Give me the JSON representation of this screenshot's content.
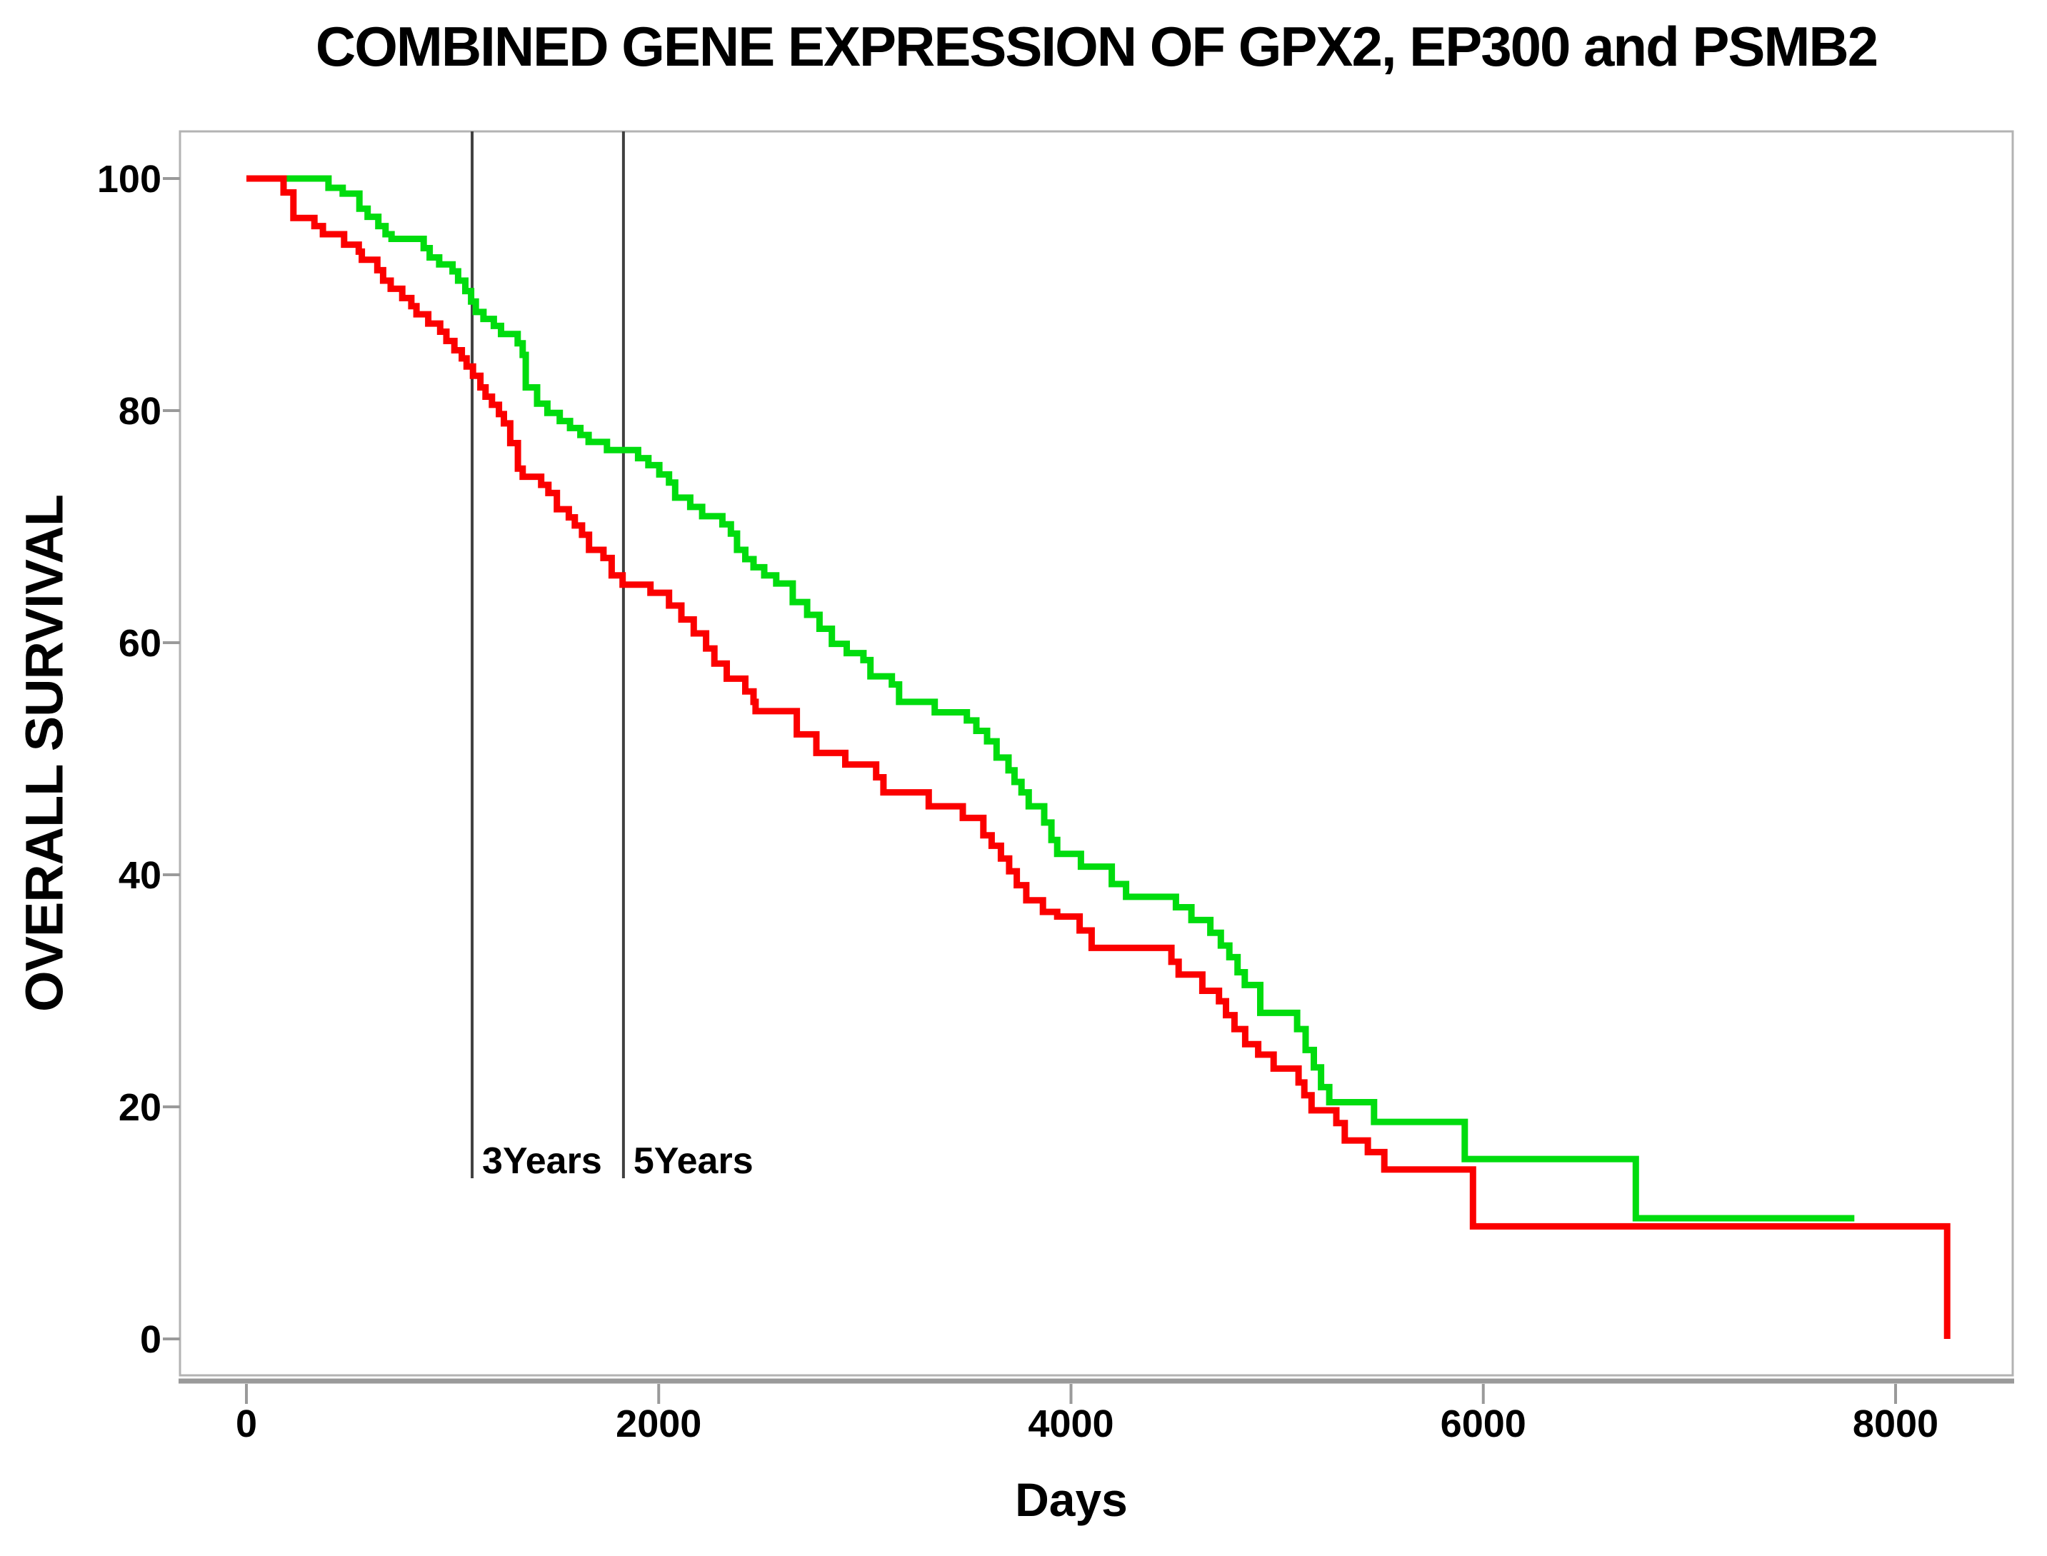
{
  "figure": {
    "background_color": "#ffffff",
    "text_color": "#000000",
    "border_color": "#b3b3b3",
    "axis_color": "#9a9a9a",
    "annotation_line_color": "#404040"
  },
  "chart_data": {
    "type": "line",
    "subtype": "kaplan-meier-step-survival",
    "title": "COMBINED GENE EXPRESSION OF GPX2, EP300 and PSMB2",
    "xlabel": "Days",
    "ylabel": "OVERALL SURVIVAL",
    "xlim": [
      0,
      8000
    ],
    "ylim": [
      0,
      100
    ],
    "x_ticks": [
      "0",
      "2000",
      "4000",
      "6000",
      "8000"
    ],
    "y_ticks": [
      "0",
      "20",
      "40",
      "60",
      "80",
      "100"
    ],
    "x_tick_values": [
      0,
      2000,
      4000,
      6000,
      8000
    ],
    "y_tick_values": [
      0,
      20,
      40,
      60,
      80,
      100
    ],
    "grid": false,
    "legend_position": "none",
    "annotations": [
      {
        "label": "3Years",
        "day": 1095
      },
      {
        "label": "5Years",
        "day": 1829
      }
    ],
    "series": [
      {
        "name": "green-curve",
        "color": "#00DC0E",
        "points": [
          [
            0,
            100
          ],
          [
            398,
            99.2
          ],
          [
            467,
            98.7
          ],
          [
            548,
            97.4
          ],
          [
            588,
            96.7
          ],
          [
            640,
            95.9
          ],
          [
            675,
            95.2
          ],
          [
            704,
            94.8
          ],
          [
            860,
            94.0
          ],
          [
            889,
            93.2
          ],
          [
            935,
            92.6
          ],
          [
            1000,
            92.0
          ],
          [
            1027,
            91.2
          ],
          [
            1062,
            90.3
          ],
          [
            1090,
            89.4
          ],
          [
            1113,
            88.5
          ],
          [
            1150,
            87.9
          ],
          [
            1200,
            87.3
          ],
          [
            1235,
            86.6
          ],
          [
            1316,
            85.8
          ],
          [
            1340,
            84.8
          ],
          [
            1355,
            82.0
          ],
          [
            1410,
            80.6
          ],
          [
            1460,
            79.8
          ],
          [
            1520,
            79.1
          ],
          [
            1570,
            78.5
          ],
          [
            1620,
            77.9
          ],
          [
            1660,
            77.3
          ],
          [
            1749,
            76.6
          ],
          [
            1900,
            75.9
          ],
          [
            1950,
            75.3
          ],
          [
            2003,
            74.5
          ],
          [
            2050,
            73.8
          ],
          [
            2080,
            72.5
          ],
          [
            2153,
            71.7
          ],
          [
            2211,
            70.9
          ],
          [
            2309,
            70.2
          ],
          [
            2350,
            69.4
          ],
          [
            2380,
            68.0
          ],
          [
            2420,
            67.2
          ],
          [
            2460,
            66.5
          ],
          [
            2512,
            65.8
          ],
          [
            2570,
            65.1
          ],
          [
            2650,
            63.5
          ],
          [
            2720,
            62.4
          ],
          [
            2780,
            61.2
          ],
          [
            2840,
            59.9
          ],
          [
            2912,
            59.1
          ],
          [
            2993,
            58.5
          ],
          [
            3027,
            57.1
          ],
          [
            3131,
            56.4
          ],
          [
            3166,
            54.9
          ],
          [
            3339,
            54.0
          ],
          [
            3495,
            53.3
          ],
          [
            3541,
            52.4
          ],
          [
            3593,
            51.5
          ],
          [
            3639,
            50.1
          ],
          [
            3697,
            49.0
          ],
          [
            3726,
            48.0
          ],
          [
            3760,
            47.1
          ],
          [
            3795,
            45.9
          ],
          [
            3870,
            44.5
          ],
          [
            3905,
            43.0
          ],
          [
            3933,
            41.8
          ],
          [
            4048,
            40.7
          ],
          [
            4198,
            39.2
          ],
          [
            4267,
            38.1
          ],
          [
            4509,
            37.2
          ],
          [
            4584,
            36.1
          ],
          [
            4676,
            35.0
          ],
          [
            4727,
            33.9
          ],
          [
            4768,
            32.9
          ],
          [
            4808,
            31.6
          ],
          [
            4843,
            30.5
          ],
          [
            4918,
            28.1
          ],
          [
            5097,
            26.7
          ],
          [
            5138,
            24.9
          ],
          [
            5178,
            23.4
          ],
          [
            5213,
            21.7
          ],
          [
            5253,
            20.4
          ],
          [
            5470,
            18.7
          ],
          [
            5910,
            15.5
          ],
          [
            6740,
            10.4
          ],
          [
            7800,
            10.4
          ]
        ]
      },
      {
        "name": "red-curve",
        "color": "#FB0000",
        "points": [
          [
            0,
            100
          ],
          [
            180,
            98.8
          ],
          [
            228,
            96.6
          ],
          [
            330,
            95.9
          ],
          [
            371,
            95.2
          ],
          [
            474,
            94.3
          ],
          [
            545,
            93.7
          ],
          [
            560,
            93.0
          ],
          [
            635,
            92.1
          ],
          [
            663,
            91.2
          ],
          [
            700,
            90.5
          ],
          [
            756,
            89.7
          ],
          [
            800,
            89.0
          ],
          [
            825,
            88.3
          ],
          [
            882,
            87.5
          ],
          [
            940,
            86.8
          ],
          [
            970,
            86.0
          ],
          [
            1009,
            85.2
          ],
          [
            1045,
            84.5
          ],
          [
            1068,
            83.8
          ],
          [
            1099,
            83.0
          ],
          [
            1135,
            82.0
          ],
          [
            1160,
            81.2
          ],
          [
            1191,
            80.5
          ],
          [
            1225,
            79.7
          ],
          [
            1249,
            78.9
          ],
          [
            1280,
            77.2
          ],
          [
            1317,
            75.0
          ],
          [
            1340,
            74.3
          ],
          [
            1430,
            73.6
          ],
          [
            1465,
            72.9
          ],
          [
            1506,
            71.5
          ],
          [
            1564,
            70.8
          ],
          [
            1593,
            70.1
          ],
          [
            1628,
            69.3
          ],
          [
            1662,
            68.0
          ],
          [
            1732,
            67.3
          ],
          [
            1772,
            65.8
          ],
          [
            1825,
            65.0
          ],
          [
            1960,
            64.3
          ],
          [
            2050,
            63.2
          ],
          [
            2110,
            62.0
          ],
          [
            2170,
            60.8
          ],
          [
            2230,
            59.5
          ],
          [
            2270,
            58.2
          ],
          [
            2330,
            56.9
          ],
          [
            2420,
            55.8
          ],
          [
            2460,
            54.9
          ],
          [
            2470,
            54.1
          ],
          [
            2670,
            52.1
          ],
          [
            2765,
            50.5
          ],
          [
            2905,
            49.5
          ],
          [
            3055,
            48.4
          ],
          [
            3090,
            47.1
          ],
          [
            3310,
            45.9
          ],
          [
            3475,
            44.9
          ],
          [
            3575,
            43.4
          ],
          [
            3615,
            42.5
          ],
          [
            3660,
            41.4
          ],
          [
            3700,
            40.3
          ],
          [
            3737,
            39.1
          ],
          [
            3783,
            37.8
          ],
          [
            3864,
            36.8
          ],
          [
            3933,
            36.4
          ],
          [
            4042,
            35.2
          ],
          [
            4100,
            33.7
          ],
          [
            4487,
            32.5
          ],
          [
            4522,
            31.4
          ],
          [
            4637,
            30.0
          ],
          [
            4718,
            29.1
          ],
          [
            4752,
            27.9
          ],
          [
            4793,
            26.7
          ],
          [
            4845,
            25.4
          ],
          [
            4908,
            24.5
          ],
          [
            4983,
            23.3
          ],
          [
            5104,
            22.1
          ],
          [
            5132,
            21.0
          ],
          [
            5167,
            19.7
          ],
          [
            5287,
            18.6
          ],
          [
            5328,
            17.1
          ],
          [
            5440,
            16.1
          ],
          [
            5520,
            14.6
          ],
          [
            5950,
            9.7
          ],
          [
            8250,
            9.7
          ],
          [
            8250,
            0
          ]
        ]
      }
    ]
  }
}
